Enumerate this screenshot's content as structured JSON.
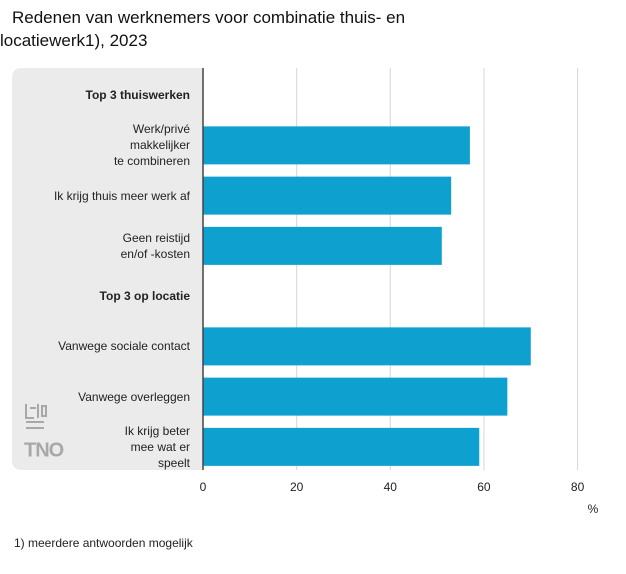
{
  "chart_data": {
    "type": "bar",
    "orientation": "horizontal",
    "title": "Redenen van werknemers voor combinatie thuis- en locatiewerk1), 2023",
    "categories": [
      "Top 3 thuiswerken",
      "Werk/privé\nmakkelijker\nte combineren",
      "Ik krijg thuis meer werk af",
      "Geen reistijd\nen/of -kosten",
      "Top 3 op locatie",
      "Vanwege sociale contact",
      "Vanwege overleggen",
      "Ik krijg beter\nmee wat er\nspeelt"
    ],
    "values": [
      null,
      57,
      53,
      51,
      null,
      70,
      65,
      59
    ],
    "color": "#0ea1cf",
    "xlim": [
      0,
      85
    ],
    "xticks": [
      0,
      20,
      40,
      60,
      80
    ],
    "xlabel": "%",
    "grid": true,
    "footnote": "1) meerdere antwoorden mogelijk",
    "logo": "TNO"
  }
}
